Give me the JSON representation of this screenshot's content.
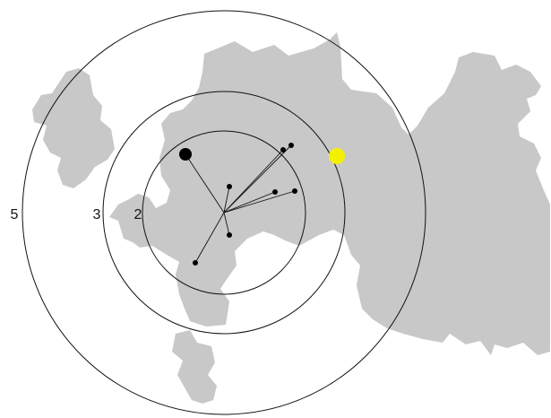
{
  "diagram": {
    "type": "radial-distance-map",
    "colors": {
      "land": "#c8c8c8",
      "rings": "#111111",
      "spokes": "#111111",
      "points": "#000000",
      "highlight": "#f2f200",
      "background": "#ffffff"
    },
    "rings": [
      {
        "label": "2"
      },
      {
        "label": "3"
      },
      {
        "label": "5"
      }
    ],
    "points": [
      {
        "kind": "large-point"
      },
      {
        "kind": "point"
      },
      {
        "kind": "point"
      },
      {
        "kind": "point"
      },
      {
        "kind": "point"
      },
      {
        "kind": "point"
      },
      {
        "kind": "point"
      },
      {
        "kind": "point"
      }
    ],
    "highlight_point": {
      "kind": "highlight"
    }
  }
}
